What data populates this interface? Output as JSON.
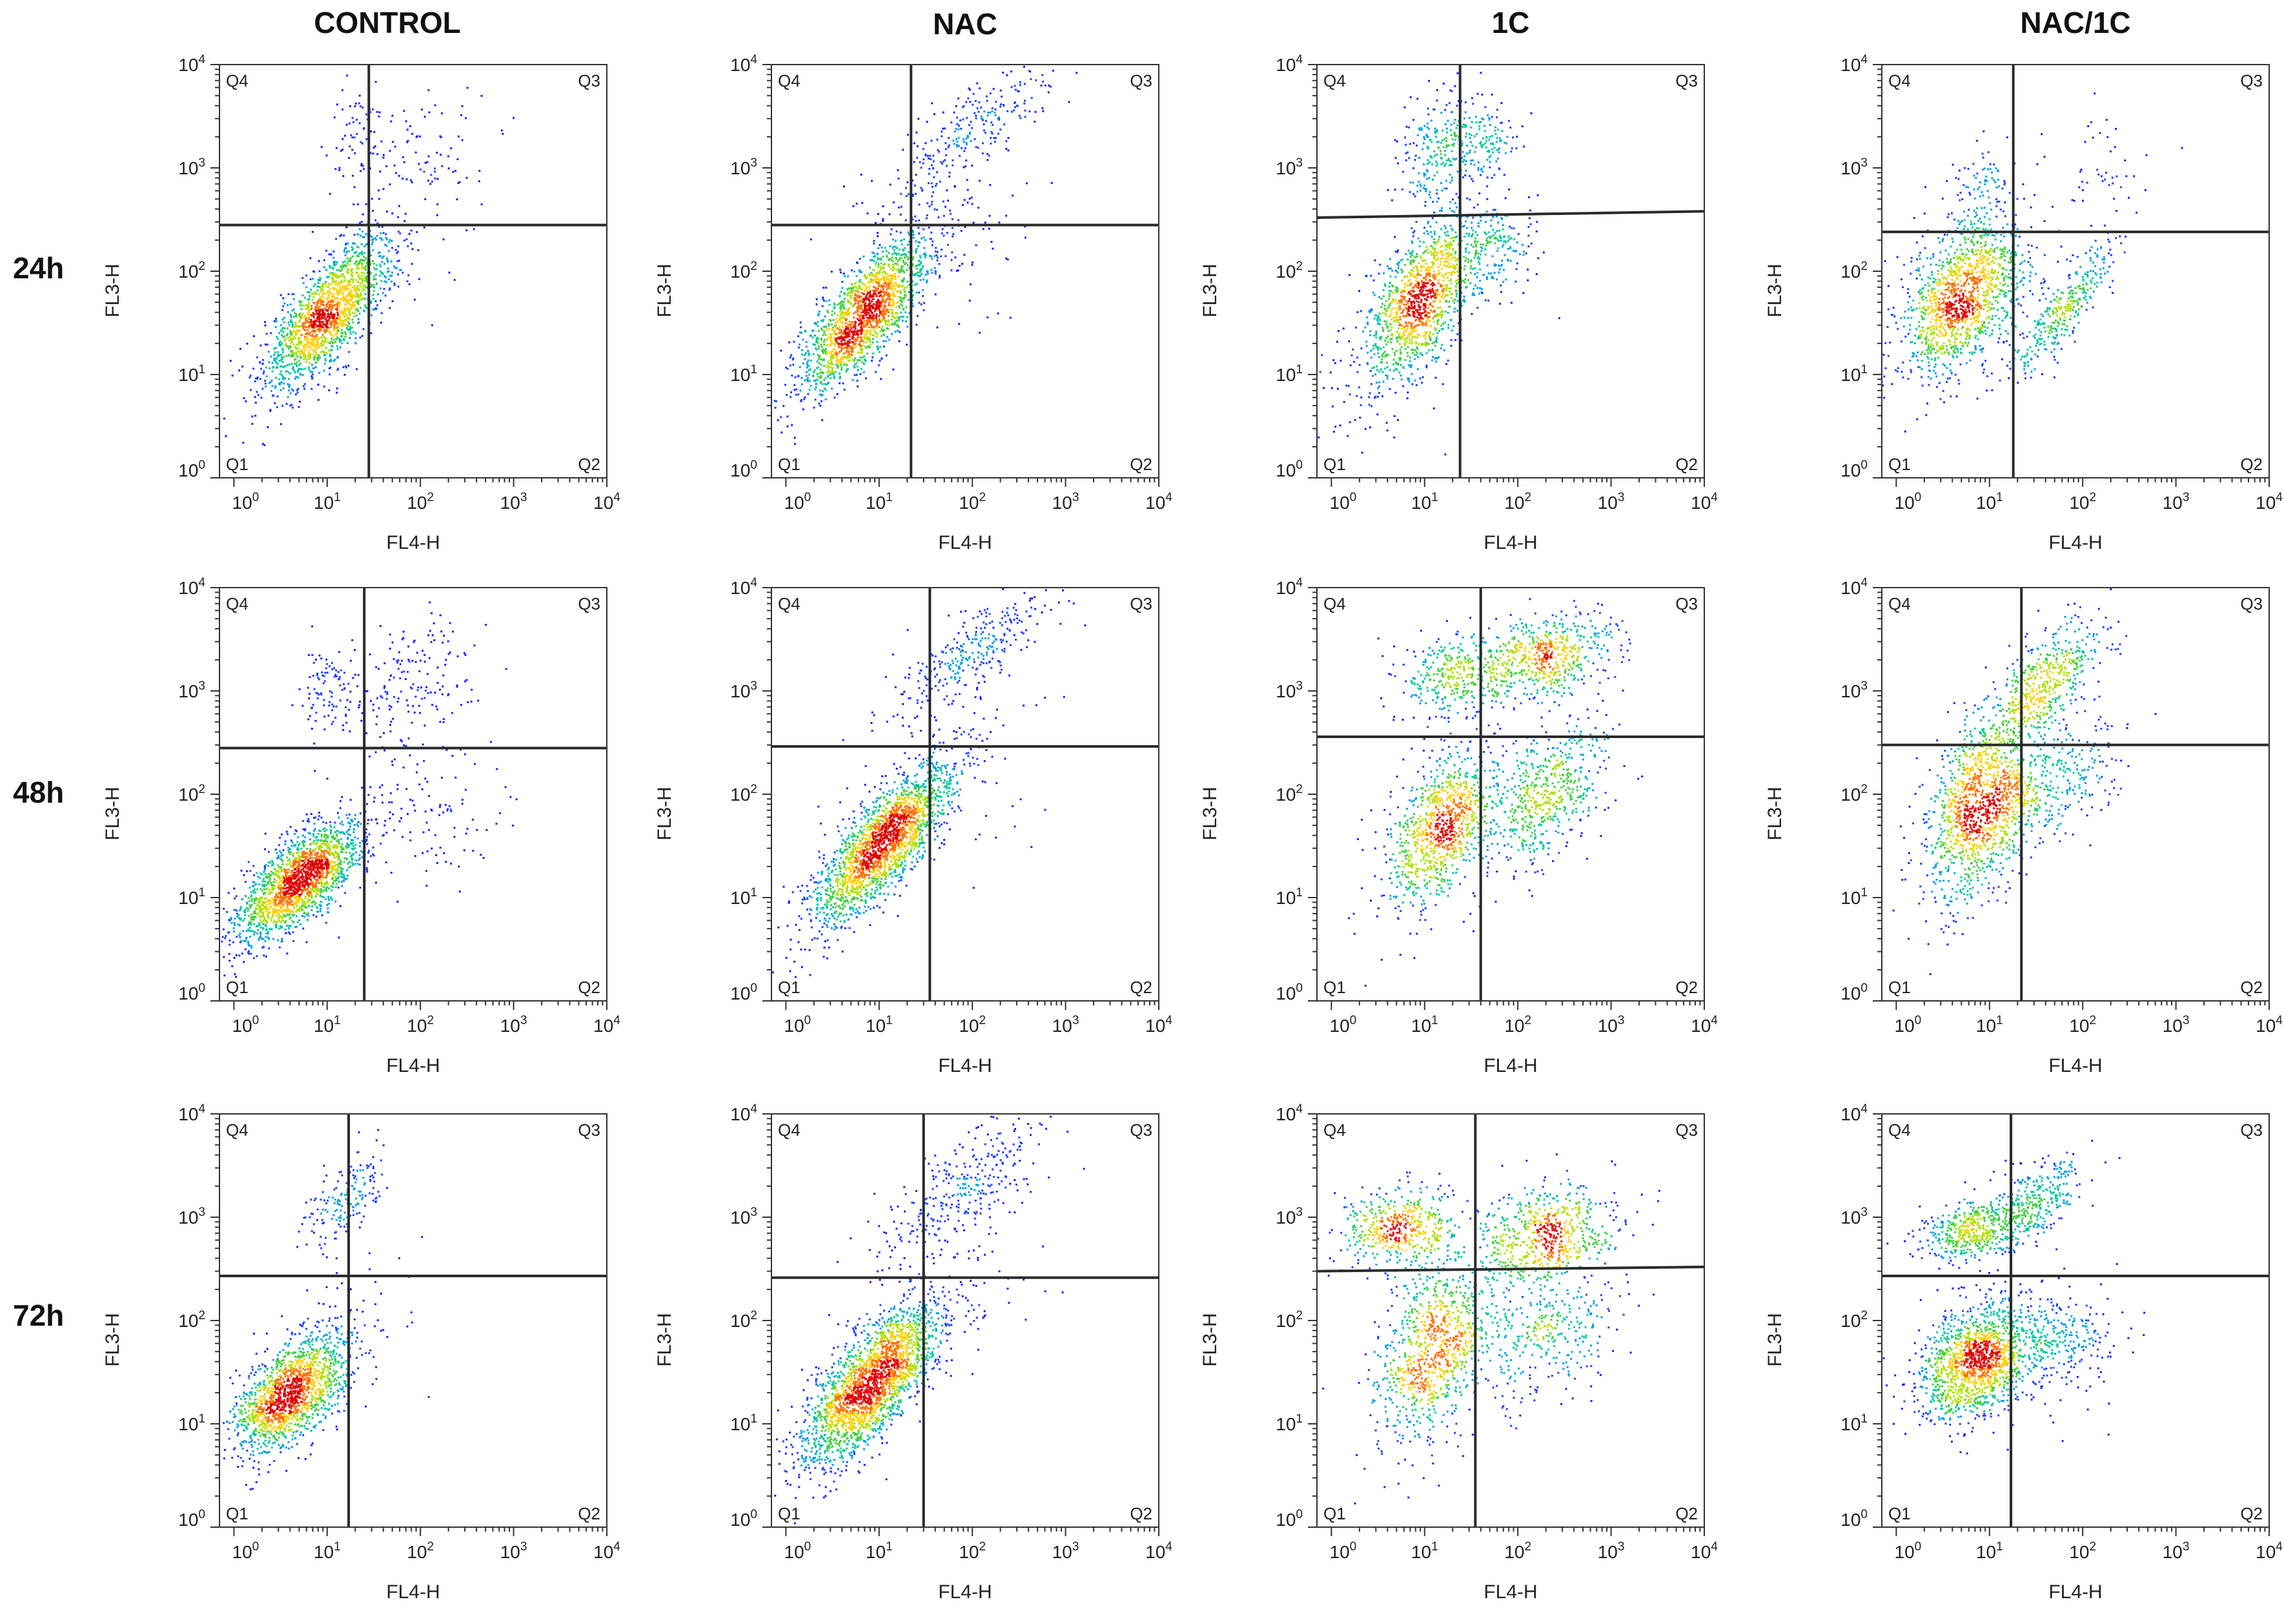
{
  "figure": {
    "column_titles": [
      "CONTROL",
      "NAC",
      "1C",
      "NAC/1C"
    ],
    "row_labels": [
      "24h",
      "48h",
      "72h"
    ]
  },
  "palette": {
    "density": [
      "#1a1aff",
      "#2040ff",
      "#00a0e0",
      "#00c8a0",
      "#40d040",
      "#b0e000",
      "#ffd000",
      "#ff7000",
      "#e00000"
    ],
    "gate_line": "#2a2a2a",
    "frame": "#333333"
  },
  "chart_data": [
    {
      "type": "scatter",
      "title": "CONTROL 24h",
      "xlabel": "FL4-H",
      "ylabel": "FL3-H",
      "xscale": "log",
      "yscale": "log",
      "xlim": [
        0.7,
        10000
      ],
      "ylim": [
        1,
        10000
      ],
      "xticks": [
        "10",
        "10",
        "10",
        "10",
        "10"
      ],
      "xtick_exp": [
        "0",
        "1",
        "2",
        "3",
        "4"
      ],
      "yticks": [
        "10",
        "10",
        "10",
        "10",
        "10"
      ],
      "ytick_exp": [
        "0",
        "1",
        "2",
        "3",
        "4"
      ],
      "quadrants": [
        "Q1",
        "Q2",
        "Q3",
        "Q4"
      ],
      "gate": {
        "x": 28,
        "y": 280
      },
      "clusters": [
        {
          "cx": 10,
          "cy": 40,
          "sx": 0.35,
          "sy": 0.38,
          "rho": 0.75,
          "n": 1600
        },
        {
          "cx": 20,
          "cy": 2300,
          "sx": 0.15,
          "sy": 0.2,
          "rho": 0.2,
          "n": 60
        },
        {
          "cx": 100,
          "cy": 1500,
          "sx": 0.4,
          "sy": 0.3,
          "rho": 0.1,
          "n": 90
        },
        {
          "cx": 40,
          "cy": 150,
          "sx": 0.4,
          "sy": 0.4,
          "rho": 0.1,
          "n": 40
        }
      ]
    },
    {
      "type": "scatter",
      "title": "NAC 24h",
      "xlabel": "FL4-H",
      "ylabel": "FL3-H",
      "xscale": "log",
      "yscale": "log",
      "xlim": [
        0.7,
        10000
      ],
      "ylim": [
        1,
        10000
      ],
      "xticks": [
        "10",
        "10",
        "10",
        "10",
        "10"
      ],
      "xtick_exp": [
        "0",
        "1",
        "2",
        "3",
        "4"
      ],
      "yticks": [
        "10",
        "10",
        "10",
        "10",
        "10"
      ],
      "ytick_exp": [
        "0",
        "1",
        "2",
        "3",
        "4"
      ],
      "quadrants": [
        "Q1",
        "Q2",
        "Q3",
        "Q4"
      ],
      "gate": {
        "x": 22,
        "y": 280
      },
      "clusters": [
        {
          "cx": 7,
          "cy": 40,
          "sx": 0.35,
          "sy": 0.38,
          "rho": 0.75,
          "n": 1700
        },
        {
          "cx": 100,
          "cy": 2500,
          "sx": 0.45,
          "sy": 0.35,
          "rho": 0.8,
          "n": 260
        },
        {
          "cx": 60,
          "cy": 200,
          "sx": 0.45,
          "sy": 0.45,
          "rho": 0.2,
          "n": 80
        }
      ]
    },
    {
      "type": "scatter",
      "title": "1C 24h",
      "xlabel": "FL4-H",
      "ylabel": "FL3-H",
      "xscale": "log",
      "yscale": "log",
      "xlim": [
        0.7,
        10000
      ],
      "ylim": [
        1,
        10000
      ],
      "xticks": [
        "10",
        "10",
        "10",
        "10",
        "10"
      ],
      "xtick_exp": [
        "0",
        "1",
        "2",
        "3",
        "4"
      ],
      "yticks": [
        "10",
        "10",
        "10",
        "10",
        "10"
      ],
      "ytick_exp": [
        "0",
        "1",
        "2",
        "3",
        "4"
      ],
      "quadrants": [
        "Q1",
        "Q2",
        "Q3",
        "Q4"
      ],
      "gate": {
        "x": 24,
        "y": 330,
        "y_right": 380
      },
      "clusters": [
        {
          "cx": 9,
          "cy": 55,
          "sx": 0.3,
          "sy": 0.38,
          "rho": 0.55,
          "n": 1100
        },
        {
          "cx": 15,
          "cy": 1500,
          "sx": 0.22,
          "sy": 0.28,
          "rho": 0.3,
          "n": 260
        },
        {
          "cx": 50,
          "cy": 1800,
          "sx": 0.15,
          "sy": 0.18,
          "rho": 0.1,
          "n": 100
        },
        {
          "cx": 50,
          "cy": 150,
          "sx": 0.25,
          "sy": 0.25,
          "rho": 0.2,
          "n": 200
        },
        {
          "cx": 3,
          "cy": 10,
          "sx": 0.4,
          "sy": 0.4,
          "rho": 0.3,
          "n": 120
        }
      ]
    },
    {
      "type": "scatter",
      "title": "NAC/1C 24h",
      "xlabel": "FL4-H",
      "ylabel": "FL3-H",
      "xscale": "log",
      "yscale": "log",
      "xlim": [
        0.7,
        10000
      ],
      "ylim": [
        1,
        10000
      ],
      "xticks": [
        "10",
        "10",
        "10",
        "10",
        "10"
      ],
      "xtick_exp": [
        "0",
        "1",
        "2",
        "3",
        "4"
      ],
      "yticks": [
        "10",
        "10",
        "10",
        "10",
        "10"
      ],
      "ytick_exp": [
        "0",
        "1",
        "2",
        "3",
        "4"
      ],
      "quadrants": [
        "Q1",
        "Q2",
        "Q3",
        "Q4"
      ],
      "gate": {
        "x": 18,
        "y": 240
      },
      "clusters": [
        {
          "cx": 5,
          "cy": 55,
          "sx": 0.35,
          "sy": 0.4,
          "rho": 0.45,
          "n": 1300
        },
        {
          "cx": 60,
          "cy": 40,
          "sx": 0.28,
          "sy": 0.32,
          "rho": 0.85,
          "n": 320
        },
        {
          "cx": 8,
          "cy": 700,
          "sx": 0.15,
          "sy": 0.2,
          "rho": 0.2,
          "n": 70
        },
        {
          "cx": 150,
          "cy": 1000,
          "sx": 0.4,
          "sy": 0.3,
          "rho": 0.1,
          "n": 50
        }
      ]
    },
    {
      "type": "scatter",
      "title": "CONTROL 48h",
      "xlabel": "FL4-H",
      "ylabel": "FL3-H",
      "xscale": "log",
      "yscale": "log",
      "xlim": [
        0.7,
        10000
      ],
      "ylim": [
        1,
        10000
      ],
      "xticks": [
        "10",
        "10",
        "10",
        "10",
        "10"
      ],
      "xtick_exp": [
        "0",
        "1",
        "2",
        "3",
        "4"
      ],
      "yticks": [
        "10",
        "10",
        "10",
        "10",
        "10"
      ],
      "ytick_exp": [
        "0",
        "1",
        "2",
        "3",
        "4"
      ],
      "quadrants": [
        "Q1",
        "Q2",
        "Q3",
        "Q4"
      ],
      "gate": {
        "x": 25,
        "y": 280
      },
      "clusters": [
        {
          "cx": 5,
          "cy": 15,
          "sx": 0.35,
          "sy": 0.3,
          "rho": 0.7,
          "n": 1800
        },
        {
          "cx": 10,
          "cy": 1100,
          "sx": 0.15,
          "sy": 0.2,
          "rho": 0.2,
          "n": 90
        },
        {
          "cx": 80,
          "cy": 1300,
          "sx": 0.4,
          "sy": 0.3,
          "rho": 0.3,
          "n": 170
        },
        {
          "cx": 120,
          "cy": 80,
          "sx": 0.4,
          "sy": 0.35,
          "rho": 0.1,
          "n": 110
        }
      ]
    },
    {
      "type": "scatter",
      "title": "NAC 48h",
      "xlabel": "FL4-H",
      "ylabel": "FL3-H",
      "xscale": "log",
      "yscale": "log",
      "xlim": [
        0.7,
        10000
      ],
      "ylim": [
        1,
        10000
      ],
      "xticks": [
        "10",
        "10",
        "10",
        "10",
        "10"
      ],
      "xtick_exp": [
        "0",
        "1",
        "2",
        "3",
        "4"
      ],
      "yticks": [
        "10",
        "10",
        "10",
        "10",
        "10"
      ],
      "ytick_exp": [
        "0",
        "1",
        "2",
        "3",
        "4"
      ],
      "quadrants": [
        "Q1",
        "Q2",
        "Q3",
        "Q4"
      ],
      "gate": {
        "x": 35,
        "y": 290
      },
      "clusters": [
        {
          "cx": 11,
          "cy": 35,
          "sx": 0.38,
          "sy": 0.4,
          "rho": 0.8,
          "n": 2000
        },
        {
          "cx": 90,
          "cy": 2300,
          "sx": 0.45,
          "sy": 0.35,
          "rho": 0.8,
          "n": 320
        },
        {
          "cx": 80,
          "cy": 200,
          "sx": 0.45,
          "sy": 0.45,
          "rho": 0.2,
          "n": 70
        }
      ]
    },
    {
      "type": "scatter",
      "title": "1C 48h",
      "xlabel": "FL4-H",
      "ylabel": "FL3-H",
      "xscale": "log",
      "yscale": "log",
      "xlim": [
        0.7,
        10000
      ],
      "ylim": [
        1,
        10000
      ],
      "xticks": [
        "10",
        "10",
        "10",
        "10",
        "10"
      ],
      "xtick_exp": [
        "0",
        "1",
        "2",
        "3",
        "4"
      ],
      "yticks": [
        "10",
        "10",
        "10",
        "10",
        "10"
      ],
      "ytick_exp": [
        "0",
        "1",
        "2",
        "3",
        "4"
      ],
      "quadrants": [
        "Q1",
        "Q2",
        "Q3",
        "Q4"
      ],
      "gate": {
        "x": 40,
        "y": 360
      },
      "clusters": [
        {
          "cx": 15,
          "cy": 50,
          "sx": 0.3,
          "sy": 0.4,
          "rho": 0.5,
          "n": 900
        },
        {
          "cx": 200,
          "cy": 100,
          "sx": 0.35,
          "sy": 0.35,
          "rho": 0.5,
          "n": 550
        },
        {
          "cx": 20,
          "cy": 1400,
          "sx": 0.32,
          "sy": 0.2,
          "rho": 0.1,
          "n": 330
        },
        {
          "cx": 180,
          "cy": 2200,
          "sx": 0.35,
          "sy": 0.2,
          "rho": 0.2,
          "n": 550
        }
      ]
    },
    {
      "type": "scatter",
      "title": "NAC/1C 48h",
      "xlabel": "FL4-H",
      "ylabel": "FL3-H",
      "xscale": "log",
      "yscale": "log",
      "xlim": [
        0.7,
        10000
      ],
      "ylim": [
        1,
        10000
      ],
      "xticks": [
        "10",
        "10",
        "10",
        "10",
        "10"
      ],
      "xtick_exp": [
        "0",
        "1",
        "2",
        "3",
        "4"
      ],
      "yticks": [
        "10",
        "10",
        "10",
        "10",
        "10"
      ],
      "ytick_exp": [
        "0",
        "1",
        "2",
        "3",
        "4"
      ],
      "quadrants": [
        "Q1",
        "Q2",
        "Q3",
        "Q4"
      ],
      "gate": {
        "x": 22,
        "y": 300
      },
      "clusters": [
        {
          "cx": 8,
          "cy": 80,
          "sx": 0.3,
          "sy": 0.45,
          "rho": 0.4,
          "n": 1200
        },
        {
          "cx": 40,
          "cy": 1300,
          "sx": 0.3,
          "sy": 0.3,
          "rho": 0.6,
          "n": 480
        },
        {
          "cx": 50,
          "cy": 150,
          "sx": 0.35,
          "sy": 0.3,
          "rho": 0.3,
          "n": 280
        }
      ]
    },
    {
      "type": "scatter",
      "title": "CONTROL 72h",
      "xlabel": "FL4-H",
      "ylabel": "FL3-H",
      "xscale": "log",
      "yscale": "log",
      "xlim": [
        0.7,
        10000
      ],
      "ylim": [
        1,
        10000
      ],
      "xticks": [
        "10",
        "10",
        "10",
        "10",
        "10"
      ],
      "xtick_exp": [
        "0",
        "1",
        "2",
        "3",
        "4"
      ],
      "yticks": [
        "10",
        "10",
        "10",
        "10",
        "10"
      ],
      "ytick_exp": [
        "0",
        "1",
        "2",
        "3",
        "4"
      ],
      "quadrants": [
        "Q1",
        "Q2",
        "Q3",
        "Q4"
      ],
      "gate": {
        "x": 17,
        "y": 270
      },
      "clusters": [
        {
          "cx": 4,
          "cy": 20,
          "sx": 0.32,
          "sy": 0.3,
          "rho": 0.6,
          "n": 1500
        },
        {
          "cx": 15,
          "cy": 1500,
          "sx": 0.22,
          "sy": 0.22,
          "rho": 0.6,
          "n": 170
        },
        {
          "cx": 30,
          "cy": 150,
          "sx": 0.4,
          "sy": 0.4,
          "rho": 0.1,
          "n": 25
        }
      ]
    },
    {
      "type": "scatter",
      "title": "NAC 72h",
      "xlabel": "FL4-H",
      "ylabel": "FL3-H",
      "xscale": "log",
      "yscale": "log",
      "xlim": [
        0.7,
        10000
      ],
      "ylim": [
        1,
        10000
      ],
      "xticks": [
        "10",
        "10",
        "10",
        "10",
        "10"
      ],
      "xtick_exp": [
        "0",
        "1",
        "2",
        "3",
        "4"
      ],
      "yticks": [
        "10",
        "10",
        "10",
        "10",
        "10"
      ],
      "ytick_exp": [
        "0",
        "1",
        "2",
        "3",
        "4"
      ],
      "quadrants": [
        "Q1",
        "Q2",
        "Q3",
        "Q4"
      ],
      "gate": {
        "x": 30,
        "y": 260
      },
      "clusters": [
        {
          "cx": 8,
          "cy": 25,
          "sx": 0.38,
          "sy": 0.4,
          "rho": 0.75,
          "n": 2200
        },
        {
          "cx": 80,
          "cy": 2000,
          "sx": 0.5,
          "sy": 0.4,
          "rho": 0.8,
          "n": 330
        },
        {
          "cx": 70,
          "cy": 150,
          "sx": 0.45,
          "sy": 0.45,
          "rho": 0.2,
          "n": 60
        }
      ]
    },
    {
      "type": "scatter",
      "title": "1C 72h",
      "xlabel": "FL4-H",
      "ylabel": "FL3-H",
      "xscale": "log",
      "yscale": "log",
      "xlim": [
        0.7,
        10000
      ],
      "ylim": [
        1,
        10000
      ],
      "xticks": [
        "10",
        "10",
        "10",
        "10",
        "10"
      ],
      "xtick_exp": [
        "0",
        "1",
        "2",
        "3",
        "4"
      ],
      "yticks": [
        "10",
        "10",
        "10",
        "10",
        "10"
      ],
      "ytick_exp": [
        "0",
        "1",
        "2",
        "3",
        "4"
      ],
      "quadrants": [
        "Q1",
        "Q2",
        "Q3",
        "Q4"
      ],
      "gate": {
        "x": 35,
        "y": 300,
        "y_right": 330
      },
      "clusters": [
        {
          "cx": 12,
          "cy": 50,
          "sx": 0.32,
          "sy": 0.45,
          "rho": 0.45,
          "n": 850
        },
        {
          "cx": 5,
          "cy": 800,
          "sx": 0.3,
          "sy": 0.2,
          "rho": 0.1,
          "n": 450
        },
        {
          "cx": 200,
          "cy": 700,
          "sx": 0.4,
          "sy": 0.25,
          "rho": 0.2,
          "n": 600
        },
        {
          "cx": 200,
          "cy": 80,
          "sx": 0.4,
          "sy": 0.35,
          "rho": 0.3,
          "n": 350
        }
      ]
    },
    {
      "type": "scatter",
      "title": "NAC/1C 72h",
      "xlabel": "FL4-H",
      "ylabel": "FL3-H",
      "xscale": "log",
      "yscale": "log",
      "xlim": [
        0.7,
        10000
      ],
      "ylim": [
        1,
        10000
      ],
      "xticks": [
        "10",
        "10",
        "10",
        "10",
        "10"
      ],
      "xtick_exp": [
        "0",
        "1",
        "2",
        "3",
        "4"
      ],
      "yticks": [
        "10",
        "10",
        "10",
        "10",
        "10"
      ],
      "ytick_exp": [
        "0",
        "1",
        "2",
        "3",
        "4"
      ],
      "quadrants": [
        "Q1",
        "Q2",
        "Q3",
        "Q4"
      ],
      "gate": {
        "x": 17,
        "y": 270
      },
      "clusters": [
        {
          "cx": 7,
          "cy": 40,
          "sx": 0.3,
          "sy": 0.28,
          "rho": 0.3,
          "n": 1300
        },
        {
          "cx": 7,
          "cy": 750,
          "sx": 0.28,
          "sy": 0.15,
          "rho": 0.2,
          "n": 450
        },
        {
          "cx": 30,
          "cy": 1500,
          "sx": 0.25,
          "sy": 0.2,
          "rho": 0.5,
          "n": 300
        },
        {
          "cx": 50,
          "cy": 60,
          "sx": 0.35,
          "sy": 0.25,
          "rho": 0.2,
          "n": 320
        }
      ]
    }
  ]
}
